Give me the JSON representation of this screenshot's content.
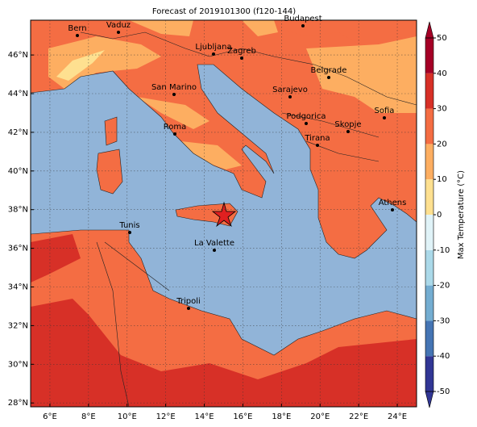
{
  "title": "Forecast of 2019101300 (f120-144)",
  "map": {
    "xlim": [
      5,
      25
    ],
    "ylim": [
      27.8,
      47.8
    ],
    "xticks": [
      {
        "value": 6,
        "label": "6°E"
      },
      {
        "value": 8,
        "label": "8°E"
      },
      {
        "value": 10,
        "label": "10°E"
      },
      {
        "value": 12,
        "label": "12°E"
      },
      {
        "value": 14,
        "label": "14°E"
      },
      {
        "value": 16,
        "label": "16°E"
      },
      {
        "value": 18,
        "label": "18°E"
      },
      {
        "value": 20,
        "label": "20°E"
      },
      {
        "value": 22,
        "label": "22°E"
      },
      {
        "value": 24,
        "label": "24°E"
      }
    ],
    "yticks": [
      {
        "value": 28,
        "label": "28°N"
      },
      {
        "value": 30,
        "label": "30°N"
      },
      {
        "value": 32,
        "label": "32°N"
      },
      {
        "value": 34,
        "label": "34°N"
      },
      {
        "value": 36,
        "label": "36°N"
      },
      {
        "value": 38,
        "label": "38°N"
      },
      {
        "value": 40,
        "label": "40°N"
      },
      {
        "value": 42,
        "label": "42°N"
      },
      {
        "value": 44,
        "label": "44°N"
      },
      {
        "value": 46,
        "label": "46°N"
      }
    ],
    "grid": true,
    "cities": [
      "Bern",
      "Vaduz",
      "Budapest",
      "Ljubljana",
      "Zagreb",
      "Belgrade",
      "San Marino",
      "Sarajevo",
      "Sofia",
      "Podgorica",
      "Skopje",
      "Roma",
      "Tirana",
      "Athens",
      "Tunis",
      "La Valette",
      "Tripoli"
    ]
  },
  "colorbar": {
    "label": "Max Temperature (°C)",
    "lim": [
      -50,
      50
    ],
    "ticks": [
      -50,
      -40,
      -30,
      -20,
      -10,
      0,
      10,
      20,
      30,
      40,
      50
    ],
    "colors": [
      "#313695",
      "#4575b4",
      "#74add1",
      "#abd9e9",
      "#e0f3f8",
      "#fee090",
      "#fdae61",
      "#f46d43",
      "#d73027",
      "#a50026"
    ]
  }
}
